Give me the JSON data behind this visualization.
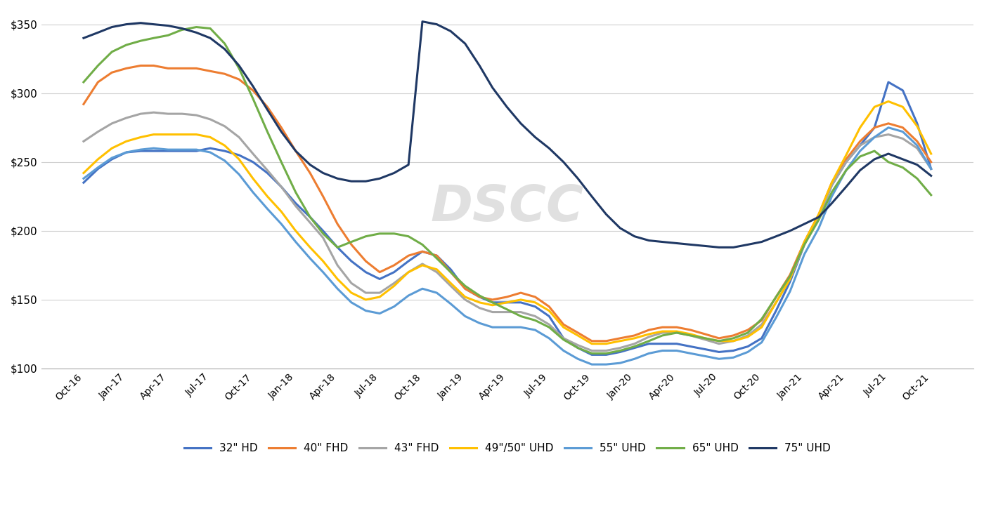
{
  "watermark": "DSCC",
  "ylim": [
    100,
    360
  ],
  "yticks": [
    100,
    150,
    200,
    250,
    300,
    350
  ],
  "background_color": "#ffffff",
  "grid_color": "#d0d0d0",
  "series": {
    "32\" HD": {
      "color": "#4472C4",
      "data": {
        "Oct-16": 235,
        "Nov-16": 245,
        "Dec-16": 252,
        "Jan-17": 257,
        "Feb-17": 258,
        "Mar-17": 258,
        "Apr-17": 258,
        "May-17": 258,
        "Jun-17": 258,
        "Jul-17": 260,
        "Aug-17": 258,
        "Sep-17": 255,
        "Oct-17": 250,
        "Nov-17": 242,
        "Dec-17": 232,
        "Jan-18": 220,
        "Feb-18": 210,
        "Mar-18": 200,
        "Apr-18": 188,
        "May-18": 178,
        "Jun-18": 170,
        "Jul-18": 165,
        "Aug-18": 170,
        "Sep-18": 178,
        "Oct-18": 185,
        "Nov-18": 182,
        "Dec-18": 172,
        "Jan-19": 158,
        "Feb-19": 152,
        "Mar-19": 148,
        "Apr-19": 148,
        "May-19": 148,
        "Jun-19": 145,
        "Jul-19": 138,
        "Aug-19": 122,
        "Sep-19": 115,
        "Oct-19": 110,
        "Nov-19": 110,
        "Dec-19": 112,
        "Jan-20": 115,
        "Feb-20": 118,
        "Mar-20": 118,
        "Apr-20": 118,
        "May-20": 116,
        "Jun-20": 114,
        "Jul-20": 112,
        "Aug-20": 113,
        "Sep-20": 116,
        "Oct-20": 122,
        "Nov-20": 142,
        "Dec-20": 163,
        "Jan-21": 190,
        "Feb-21": 210,
        "Mar-21": 233,
        "Apr-21": 250,
        "May-21": 262,
        "Jun-21": 275,
        "Jul-21": 308,
        "Aug-21": 302,
        "Sep-21": 278,
        "Oct-21": 245
      }
    },
    "40\" FHD": {
      "color": "#ED7D31",
      "data": {
        "Oct-16": 292,
        "Nov-16": 308,
        "Dec-16": 315,
        "Jan-17": 318,
        "Feb-17": 320,
        "Mar-17": 320,
        "Apr-17": 318,
        "May-17": 318,
        "Jun-17": 318,
        "Jul-17": 316,
        "Aug-17": 314,
        "Sep-17": 310,
        "Oct-17": 302,
        "Nov-17": 290,
        "Dec-17": 275,
        "Jan-18": 258,
        "Feb-18": 242,
        "Mar-18": 225,
        "Apr-18": 205,
        "May-18": 190,
        "Jun-18": 178,
        "Jul-18": 170,
        "Aug-18": 175,
        "Sep-18": 182,
        "Oct-18": 185,
        "Nov-18": 182,
        "Dec-18": 170,
        "Jan-19": 158,
        "Feb-19": 152,
        "Mar-19": 150,
        "Apr-19": 152,
        "May-19": 155,
        "Jun-19": 152,
        "Jul-19": 145,
        "Aug-19": 132,
        "Sep-19": 126,
        "Oct-19": 120,
        "Nov-19": 120,
        "Dec-19": 122,
        "Jan-20": 124,
        "Feb-20": 128,
        "Mar-20": 130,
        "Apr-20": 130,
        "May-20": 128,
        "Jun-20": 125,
        "Jul-20": 122,
        "Aug-20": 124,
        "Sep-20": 128,
        "Oct-20": 135,
        "Nov-20": 152,
        "Dec-20": 168,
        "Jan-21": 192,
        "Feb-21": 212,
        "Mar-21": 235,
        "Apr-21": 252,
        "May-21": 265,
        "Jun-21": 275,
        "Jul-21": 278,
        "Aug-21": 275,
        "Sep-21": 265,
        "Oct-21": 250
      }
    },
    "43\" FHD": {
      "color": "#A5A5A5",
      "data": {
        "Oct-16": 265,
        "Nov-16": 272,
        "Dec-16": 278,
        "Jan-17": 282,
        "Feb-17": 285,
        "Mar-17": 286,
        "Apr-17": 285,
        "May-17": 285,
        "Jun-17": 284,
        "Jul-17": 281,
        "Aug-17": 276,
        "Sep-17": 268,
        "Oct-17": 256,
        "Nov-17": 244,
        "Dec-17": 232,
        "Jan-18": 218,
        "Feb-18": 206,
        "Mar-18": 195,
        "Apr-18": 175,
        "May-18": 162,
        "Jun-18": 155,
        "Jul-18": 155,
        "Aug-18": 162,
        "Sep-18": 170,
        "Oct-18": 176,
        "Nov-18": 170,
        "Dec-18": 160,
        "Jan-19": 150,
        "Feb-19": 144,
        "Mar-19": 141,
        "Apr-19": 141,
        "May-19": 141,
        "Jun-19": 138,
        "Jul-19": 132,
        "Aug-19": 122,
        "Sep-19": 117,
        "Oct-19": 113,
        "Nov-19": 113,
        "Dec-19": 115,
        "Jan-20": 118,
        "Feb-20": 123,
        "Mar-20": 126,
        "Apr-20": 126,
        "May-20": 124,
        "Jun-20": 121,
        "Jul-20": 118,
        "Aug-20": 120,
        "Sep-20": 124,
        "Oct-20": 132,
        "Nov-20": 148,
        "Dec-20": 165,
        "Jan-21": 190,
        "Feb-21": 210,
        "Mar-21": 233,
        "Apr-21": 250,
        "May-21": 262,
        "Jun-21": 268,
        "Jul-21": 270,
        "Aug-21": 267,
        "Sep-21": 260,
        "Oct-21": 245
      }
    },
    "49\"/50\" UHD": {
      "color": "#FFC000",
      "data": {
        "Oct-16": 242,
        "Nov-16": 252,
        "Dec-16": 260,
        "Jan-17": 265,
        "Feb-17": 268,
        "Mar-17": 270,
        "Apr-17": 270,
        "May-17": 270,
        "Jun-17": 270,
        "Jul-17": 268,
        "Aug-17": 262,
        "Sep-17": 252,
        "Oct-17": 238,
        "Nov-17": 225,
        "Dec-17": 214,
        "Jan-18": 200,
        "Feb-18": 188,
        "Mar-18": 178,
        "Apr-18": 165,
        "May-18": 155,
        "Jun-18": 150,
        "Jul-18": 152,
        "Aug-18": 160,
        "Sep-18": 170,
        "Oct-18": 175,
        "Nov-18": 172,
        "Dec-18": 162,
        "Jan-19": 152,
        "Feb-19": 148,
        "Mar-19": 146,
        "Apr-19": 148,
        "May-19": 150,
        "Jun-19": 148,
        "Jul-19": 142,
        "Aug-19": 130,
        "Sep-19": 124,
        "Oct-19": 118,
        "Nov-19": 118,
        "Dec-19": 120,
        "Jan-20": 122,
        "Feb-20": 125,
        "Mar-20": 127,
        "Apr-20": 127,
        "May-20": 125,
        "Jun-20": 122,
        "Jul-20": 120,
        "Aug-20": 120,
        "Sep-20": 123,
        "Oct-20": 130,
        "Nov-20": 148,
        "Dec-20": 165,
        "Jan-21": 192,
        "Feb-21": 212,
        "Mar-21": 235,
        "Apr-21": 255,
        "May-21": 275,
        "Jun-21": 290,
        "Jul-21": 294,
        "Aug-21": 290,
        "Sep-21": 276,
        "Oct-21": 256
      }
    },
    "55\" UHD": {
      "color": "#5B9BD5",
      "data": {
        "Oct-16": 238,
        "Nov-16": 246,
        "Dec-16": 253,
        "Jan-17": 257,
        "Feb-17": 259,
        "Mar-17": 260,
        "Apr-17": 259,
        "May-17": 259,
        "Jun-17": 259,
        "Jul-17": 257,
        "Aug-17": 251,
        "Sep-17": 241,
        "Oct-17": 228,
        "Nov-17": 216,
        "Dec-17": 205,
        "Jan-18": 192,
        "Feb-18": 180,
        "Mar-18": 170,
        "Apr-18": 158,
        "May-18": 148,
        "Jun-18": 142,
        "Jul-18": 140,
        "Aug-18": 145,
        "Sep-18": 153,
        "Oct-18": 158,
        "Nov-18": 155,
        "Dec-18": 147,
        "Jan-19": 138,
        "Feb-19": 133,
        "Mar-19": 130,
        "Apr-19": 130,
        "May-19": 130,
        "Jun-19": 128,
        "Jul-19": 122,
        "Aug-19": 113,
        "Sep-19": 107,
        "Oct-19": 103,
        "Nov-19": 103,
        "Dec-19": 104,
        "Jan-20": 107,
        "Feb-20": 111,
        "Mar-20": 113,
        "Apr-20": 113,
        "May-20": 111,
        "Jun-20": 109,
        "Jul-20": 107,
        "Aug-20": 108,
        "Sep-20": 112,
        "Oct-20": 119,
        "Nov-20": 137,
        "Dec-20": 156,
        "Jan-21": 183,
        "Feb-21": 202,
        "Mar-21": 225,
        "Apr-21": 244,
        "May-21": 258,
        "Jun-21": 268,
        "Jul-21": 275,
        "Aug-21": 272,
        "Sep-21": 262,
        "Oct-21": 245
      }
    },
    "65\" UHD": {
      "color": "#70AD47",
      "data": {
        "Oct-16": 308,
        "Nov-16": 320,
        "Dec-16": 330,
        "Jan-17": 335,
        "Feb-17": 338,
        "Mar-17": 340,
        "Apr-17": 342,
        "May-17": 346,
        "Jun-17": 348,
        "Jul-17": 347,
        "Aug-17": 336,
        "Sep-17": 318,
        "Oct-17": 296,
        "Nov-17": 272,
        "Dec-17": 250,
        "Jan-18": 228,
        "Feb-18": 210,
        "Mar-18": 198,
        "Apr-18": 188,
        "May-18": 192,
        "Jun-18": 196,
        "Jul-18": 198,
        "Aug-18": 198,
        "Sep-18": 196,
        "Oct-18": 190,
        "Nov-18": 180,
        "Dec-18": 170,
        "Jan-19": 160,
        "Feb-19": 153,
        "Mar-19": 148,
        "Apr-19": 143,
        "May-19": 138,
        "Jun-19": 135,
        "Jul-19": 130,
        "Aug-19": 121,
        "Sep-19": 115,
        "Oct-19": 111,
        "Nov-19": 111,
        "Dec-19": 113,
        "Jan-20": 116,
        "Feb-20": 120,
        "Mar-20": 124,
        "Apr-20": 126,
        "May-20": 124,
        "Jun-20": 122,
        "Jul-20": 120,
        "Aug-20": 122,
        "Sep-20": 126,
        "Oct-20": 136,
        "Nov-20": 152,
        "Dec-20": 167,
        "Jan-21": 190,
        "Feb-21": 208,
        "Mar-21": 228,
        "Apr-21": 244,
        "May-21": 254,
        "Jun-21": 258,
        "Jul-21": 250,
        "Aug-21": 246,
        "Sep-21": 238,
        "Oct-21": 226
      }
    },
    "75\" UHD": {
      "color": "#1F3864",
      "data": {
        "Oct-16": 340,
        "Nov-16": 344,
        "Dec-16": 348,
        "Jan-17": 350,
        "Feb-17": 351,
        "Mar-17": 350,
        "Apr-17": 349,
        "May-17": 347,
        "Jun-17": 344,
        "Jul-17": 340,
        "Aug-17": 332,
        "Sep-17": 320,
        "Oct-17": 305,
        "Nov-17": 288,
        "Dec-17": 272,
        "Jan-18": 258,
        "Feb-18": 248,
        "Mar-18": 242,
        "Apr-18": 238,
        "May-18": 236,
        "Jun-18": 236,
        "Jul-18": 238,
        "Aug-18": 242,
        "Sep-18": 248,
        "Oct-18": 352,
        "Nov-18": 350,
        "Dec-18": 345,
        "Jan-19": 336,
        "Feb-19": 320,
        "Mar-19": 304,
        "Apr-19": 290,
        "May-19": 278,
        "Jun-19": 268,
        "Jul-19": 260,
        "Aug-19": 250,
        "Sep-19": 238,
        "Oct-19": 225,
        "Nov-19": 212,
        "Dec-19": 202,
        "Jan-20": 196,
        "Feb-20": 193,
        "Mar-20": 192,
        "Apr-20": 191,
        "May-20": 190,
        "Jun-20": 189,
        "Jul-20": 188,
        "Aug-20": 188,
        "Sep-20": 190,
        "Oct-20": 192,
        "Nov-20": 196,
        "Dec-20": 200,
        "Jan-21": 205,
        "Feb-21": 210,
        "Mar-21": 220,
        "Apr-21": 232,
        "May-21": 244,
        "Jun-21": 252,
        "Jul-21": 256,
        "Aug-21": 252,
        "Sep-21": 248,
        "Oct-21": 240
      }
    }
  },
  "legend_order": [
    "32\" HD",
    "40\" FHD",
    "43\" FHD",
    "49\"/50\" UHD",
    "55\" UHD",
    "65\" UHD",
    "75\" UHD"
  ]
}
